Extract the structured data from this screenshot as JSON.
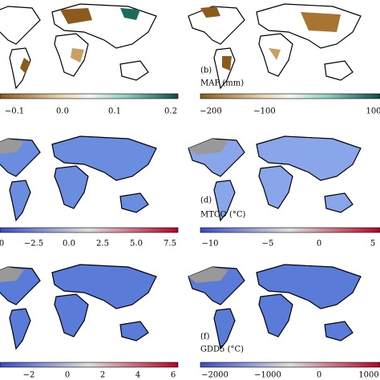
{
  "panels": [
    {
      "label": null,
      "title": null,
      "ticks": [
        "−0.1",
        "0.0",
        "0.1",
        "0.2"
      ]
    },
    {
      "label": "(b)",
      "title": "MAP (mm)",
      "ticks": [
        "−200",
        "−100",
        "100"
      ]
    },
    {
      "label": null,
      "title": null,
      "ticks": [
        "0",
        "−2.5",
        "0.0",
        "2.5",
        "5.0",
        "7.5"
      ]
    },
    {
      "label": "(d)",
      "title": "MTCO (°C)",
      "ticks": [
        "−10",
        "−5",
        "0",
        "5"
      ]
    },
    {
      "label": null,
      "title": null,
      "ticks": [
        "−2",
        "0",
        "2",
        "4",
        "6"
      ]
    },
    {
      "label": "(f)",
      "title": "GDD5 (°C)",
      "ticks": [
        "−2000",
        "−1000",
        "0",
        "1000"
      ]
    }
  ]
}
